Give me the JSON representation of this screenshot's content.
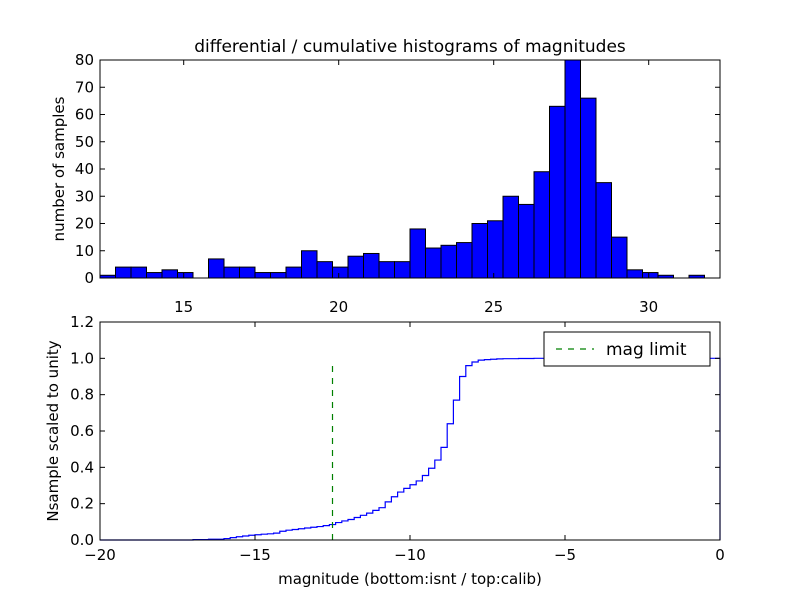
{
  "chart_data": [
    {
      "type": "bar",
      "title": "differential / cumulative histograms of magnitudes",
      "xlabel": "",
      "ylabel": "number of samples",
      "xlim": [
        12.3,
        32.3
      ],
      "ylim": [
        0,
        80
      ],
      "xticks": [
        15,
        20,
        25,
        30
      ],
      "yticks": [
        0,
        10,
        20,
        30,
        40,
        50,
        60,
        70,
        80
      ],
      "x_tick_labels": [
        "15",
        "20",
        "25",
        "30"
      ],
      "y_tick_labels": [
        "0",
        "10",
        "20",
        "30",
        "40",
        "50",
        "60",
        "70",
        "80"
      ],
      "bin_edges": [
        12.3,
        12.8,
        13.3,
        13.8,
        14.3,
        14.8,
        15.3,
        15.8,
        16.3,
        16.8,
        17.3,
        17.8,
        18.3,
        18.8,
        19.3,
        19.8,
        20.3,
        20.8,
        21.3,
        21.8,
        22.3,
        22.8,
        23.3,
        23.8,
        24.3,
        24.8,
        25.3,
        25.8,
        26.3,
        26.8,
        27.3,
        27.8,
        28.3,
        28.8,
        29.3,
        29.8,
        30.3,
        30.8,
        31.3,
        31.8,
        32.3
      ],
      "values": [
        1,
        4,
        4,
        2,
        3,
        2,
        0,
        7,
        4,
        4,
        2,
        2,
        4,
        10,
        6,
        4,
        8,
        9,
        6,
        6,
        18,
        11,
        12,
        13,
        20,
        21,
        30,
        27,
        39,
        63,
        80,
        66,
        35,
        15,
        3,
        2,
        1,
        0,
        1,
        0
      ],
      "bar_color": "#0000ff",
      "edge_color": "#000000",
      "grid": false
    },
    {
      "type": "line",
      "xlabel": "magnitude (bottom:isnt / top:calib)",
      "ylabel": "Nsample scaled to unity",
      "xlim": [
        -20,
        0
      ],
      "ylim": [
        0,
        1.2
      ],
      "xticks": [
        -20,
        -15,
        -10,
        -5,
        0
      ],
      "yticks": [
        0,
        0.2,
        0.4,
        0.6,
        0.8,
        1.0,
        1.2
      ],
      "x_tick_labels": [
        "−20",
        "−15",
        "−10",
        "−5",
        "0"
      ],
      "y_tick_labels": [
        "0.0",
        "0.2",
        "0.4",
        "0.6",
        "0.8",
        "1.0",
        "1.2"
      ],
      "grid": false,
      "legend_position": "top-right",
      "series": [
        {
          "name": "",
          "style": "step",
          "color": "#0000ff",
          "x": [
            -20,
            -17,
            -16.5,
            -16,
            -15.8,
            -15.6,
            -15.4,
            -15.2,
            -15.0,
            -14.8,
            -14.6,
            -14.4,
            -14.2,
            -14.0,
            -13.8,
            -13.6,
            -13.4,
            -13.2,
            -13.0,
            -12.8,
            -12.6,
            -12.4,
            -12.2,
            -12.0,
            -11.8,
            -11.6,
            -11.4,
            -11.2,
            -11.0,
            -10.8,
            -10.6,
            -10.4,
            -10.2,
            -10.0,
            -9.8,
            -9.6,
            -9.4,
            -9.2,
            -9.0,
            -8.8,
            -8.6,
            -8.4,
            -8.2,
            -8.0,
            -7.8,
            -7.6,
            -7.4,
            -7.2,
            -7.0,
            -6.5,
            -6.0,
            -5.0,
            -3.0,
            -1.0,
            -0.05,
            0
          ],
          "y": [
            0,
            0.002,
            0.004,
            0.008,
            0.013,
            0.018,
            0.022,
            0.026,
            0.029,
            0.032,
            0.034,
            0.038,
            0.048,
            0.054,
            0.058,
            0.062,
            0.066,
            0.07,
            0.074,
            0.079,
            0.085,
            0.096,
            0.105,
            0.113,
            0.124,
            0.136,
            0.148,
            0.163,
            0.178,
            0.21,
            0.238,
            0.264,
            0.284,
            0.304,
            0.325,
            0.355,
            0.395,
            0.44,
            0.51,
            0.64,
            0.77,
            0.9,
            0.96,
            0.98,
            0.99,
            0.993,
            0.995,
            0.997,
            0.998,
            0.999,
            1.0,
            1.0,
            1.0,
            1.0,
            1.0,
            0
          ]
        },
        {
          "name": "mag limit",
          "style": "dashed",
          "color": "#008000",
          "x": [
            -12.5,
            -12.5
          ],
          "y": [
            0,
            0.97
          ]
        }
      ]
    }
  ]
}
